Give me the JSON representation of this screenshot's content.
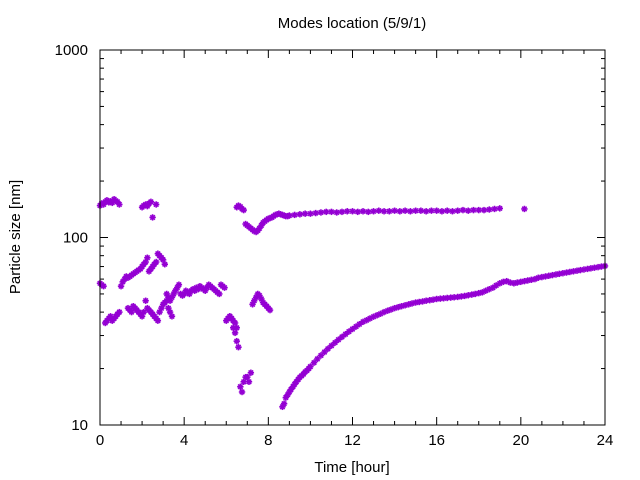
{
  "chart_data": {
    "type": "scatter",
    "title": "Modes location (5/9/1)",
    "xlabel": "Time [hour]",
    "ylabel": "Particle size [nm]",
    "xlim": [
      0,
      24
    ],
    "ylim": [
      10,
      1000
    ],
    "yscale": "log",
    "xticks": [
      0,
      4,
      8,
      12,
      16,
      20,
      24
    ],
    "xtick_labels": [
      "0",
      "4",
      "8",
      "12",
      "16",
      "20",
      "24"
    ],
    "yticks": [
      10,
      100,
      1000
    ],
    "ytick_labels": [
      "10",
      "100",
      "1000"
    ],
    "grid": false,
    "legend": "none",
    "marker_color": "#9400d3",
    "series": [
      {
        "x": [
          0.0,
          0.08,
          0.17,
          0.25,
          0.33,
          0.42,
          0.5,
          0.58,
          0.67,
          0.75,
          0.83,
          0.92,
          2.0,
          2.08,
          2.17,
          2.25,
          2.33,
          2.42,
          2.5,
          2.67,
          6.5,
          6.58,
          6.67,
          6.75,
          6.83,
          6.92,
          7.0,
          7.08,
          7.17,
          7.25,
          7.33,
          7.42,
          7.5,
          7.58,
          7.67,
          7.75,
          7.83,
          7.92,
          8.0,
          8.08,
          8.17,
          8.25,
          8.33,
          8.42,
          8.5,
          8.58,
          8.67,
          8.75,
          8.83,
          8.92,
          9.0,
          9.25,
          9.5,
          9.75,
          10.0,
          10.25,
          10.5,
          10.75,
          11.0,
          11.25,
          11.5,
          11.75,
          12.0,
          12.25,
          12.5,
          12.75,
          13.0,
          13.25,
          13.5,
          13.75,
          14.0,
          14.25,
          14.5,
          14.75,
          15.0,
          15.25,
          15.5,
          15.75,
          16.0,
          16.25,
          16.5,
          16.75,
          17.0,
          17.25,
          17.5,
          17.75,
          18.0,
          18.25,
          18.5,
          18.75,
          19.0,
          20.17
        ],
        "y": [
          148,
          152,
          150,
          155,
          158,
          154,
          156,
          153,
          160,
          157,
          155,
          150,
          145,
          148,
          150,
          147,
          152,
          155,
          128,
          150,
          145,
          148,
          146,
          142,
          140,
          118,
          116,
          114,
          112,
          110,
          108,
          107,
          109,
          112,
          116,
          120,
          122,
          124,
          126,
          127,
          128,
          130,
          132,
          133,
          134,
          133,
          132,
          131,
          130,
          130,
          131,
          132,
          133,
          134,
          134,
          135,
          136,
          137,
          137,
          136,
          137,
          138,
          138,
          137,
          138,
          137,
          138,
          139,
          138,
          138,
          139,
          138,
          139,
          138,
          139,
          139,
          138,
          139,
          139,
          138,
          139,
          138,
          139,
          140,
          139,
          140,
          140,
          140,
          141,
          142,
          143,
          142
        ],
        "name": ""
      },
      {
        "x": [
          0.0,
          0.08,
          0.17,
          0.25,
          0.33,
          0.42,
          0.5,
          0.58,
          0.67,
          0.75,
          0.83,
          0.92,
          1.0,
          1.08,
          1.17,
          1.25,
          1.33,
          1.42,
          1.5,
          1.58,
          1.67,
          1.75,
          1.83,
          1.92,
          2.0,
          2.08,
          2.17,
          2.25,
          2.33,
          2.42,
          2.5,
          2.58,
          2.67,
          2.75,
          2.83,
          2.92,
          3.0,
          3.08,
          3.17,
          3.25,
          3.33,
          3.42,
          3.5,
          3.58,
          3.67,
          3.75,
          3.83,
          3.92,
          4.0,
          4.08,
          4.17,
          4.25,
          4.33,
          4.42,
          4.5,
          4.58,
          4.67,
          4.75,
          4.83,
          4.92,
          5.0,
          5.08,
          5.17,
          5.25,
          5.33,
          5.42,
          5.5,
          5.58,
          5.67,
          5.75,
          5.83,
          5.92,
          6.0,
          6.08,
          6.17,
          6.25,
          6.33,
          6.42,
          6.5
        ],
        "y": [
          57,
          56,
          55,
          35,
          36,
          37,
          38,
          36,
          37,
          38,
          39,
          40,
          55,
          58,
          60,
          62,
          61,
          62,
          63,
          64,
          65,
          66,
          67,
          68,
          70,
          72,
          74,
          78,
          66,
          68,
          70,
          72,
          74,
          82,
          80,
          78,
          76,
          72,
          50,
          48,
          46,
          48,
          50,
          52,
          54,
          56,
          50,
          49,
          50,
          52,
          51,
          50,
          52,
          53,
          52,
          54,
          53,
          55,
          54,
          53,
          52,
          54,
          56,
          55,
          54,
          53,
          52,
          51,
          50,
          56,
          55,
          54,
          36,
          37,
          38,
          37,
          36,
          35,
          33
        ],
        "name": ""
      },
      {
        "x": [
          1.33,
          1.42,
          1.5,
          1.58,
          1.67,
          1.75,
          1.83,
          1.92,
          2.0,
          2.08,
          2.17,
          2.25,
          2.33,
          2.42,
          2.5,
          2.58,
          2.67,
          2.75,
          2.83,
          2.92,
          3.0,
          3.08,
          3.17,
          3.25,
          3.33,
          3.42
        ],
        "y": [
          42,
          41,
          40,
          43,
          42,
          41,
          40,
          39,
          38,
          40,
          46,
          42,
          41,
          40,
          39,
          38,
          37,
          36,
          40,
          42,
          44,
          45,
          46,
          42,
          40,
          38
        ],
        "name": ""
      },
      {
        "x": [
          6.17,
          6.25,
          6.33,
          6.42,
          6.5,
          6.58,
          6.67,
          6.75,
          6.83,
          6.92,
          7.0,
          7.08,
          7.17,
          7.25,
          7.33,
          7.42,
          7.5,
          7.58,
          7.67,
          7.75,
          7.83,
          7.92,
          8.0,
          8.08
        ],
        "y": [
          38,
          37,
          33,
          31,
          28,
          26,
          16,
          15,
          17,
          18,
          18,
          17,
          19,
          44,
          46,
          48,
          50,
          49,
          47,
          45,
          44,
          43,
          42,
          41
        ],
        "name": ""
      },
      {
        "x": [
          8.67,
          8.75,
          8.83,
          8.92,
          9.0,
          9.08,
          9.17,
          9.25,
          9.33,
          9.42,
          9.5,
          9.58,
          9.67,
          9.75,
          9.83,
          9.92,
          10.0,
          10.17,
          10.33,
          10.5,
          10.67,
          10.83,
          11.0,
          11.17,
          11.33,
          11.5,
          11.67,
          11.83,
          12.0,
          12.17,
          12.33,
          12.5,
          12.67,
          12.83,
          13.0,
          13.17,
          13.33,
          13.5,
          13.67,
          13.83,
          14.0,
          14.17,
          14.33,
          14.5,
          14.67,
          14.83,
          15.0,
          15.17,
          15.33,
          15.5,
          15.67,
          15.83,
          16.0,
          16.17,
          16.33,
          16.5,
          16.67,
          16.83,
          17.0,
          17.17,
          17.33,
          17.5,
          17.67,
          17.83,
          18.0,
          18.17,
          18.33,
          18.5,
          18.67,
          18.83,
          19.0,
          19.17,
          19.33,
          19.5,
          19.67,
          19.83,
          20.0,
          20.17,
          20.33,
          20.5,
          20.67,
          20.83,
          21.0,
          21.17,
          21.33,
          21.5,
          21.67,
          21.83,
          22.0,
          22.17,
          22.33,
          22.5,
          22.67,
          22.83,
          23.0,
          23.17,
          23.33,
          23.5,
          23.67,
          23.83,
          24.0
        ],
        "y": [
          12.5,
          13,
          14,
          14.5,
          15,
          15.5,
          16,
          16.5,
          17,
          17.5,
          18,
          18.3,
          18.7,
          19.2,
          19.5,
          20,
          20.5,
          21.5,
          22.5,
          23.5,
          24.5,
          25.5,
          26.5,
          27.5,
          28.5,
          29.5,
          30.5,
          31.5,
          32.5,
          33.5,
          34.5,
          35.5,
          36.2,
          37,
          37.8,
          38.5,
          39.2,
          40,
          40.7,
          41.3,
          42,
          42.5,
          43,
          43.5,
          44,
          44.5,
          45,
          45.3,
          45.6,
          46,
          46.3,
          46.6,
          47,
          47.2,
          47.4,
          47.6,
          47.8,
          48,
          48.2,
          48.5,
          48.8,
          49.2,
          49.6,
          50,
          50.5,
          51,
          52,
          53,
          54,
          55.5,
          57,
          58,
          58.5,
          57.5,
          57,
          57.5,
          58,
          58.5,
          59,
          59.5,
          60,
          61,
          61.5,
          62,
          62.5,
          63,
          63.5,
          64,
          64.5,
          65,
          65.5,
          66,
          66.5,
          67,
          67.5,
          68,
          68.5,
          69,
          69.5,
          70,
          70.5
        ],
        "name": ""
      }
    ]
  }
}
